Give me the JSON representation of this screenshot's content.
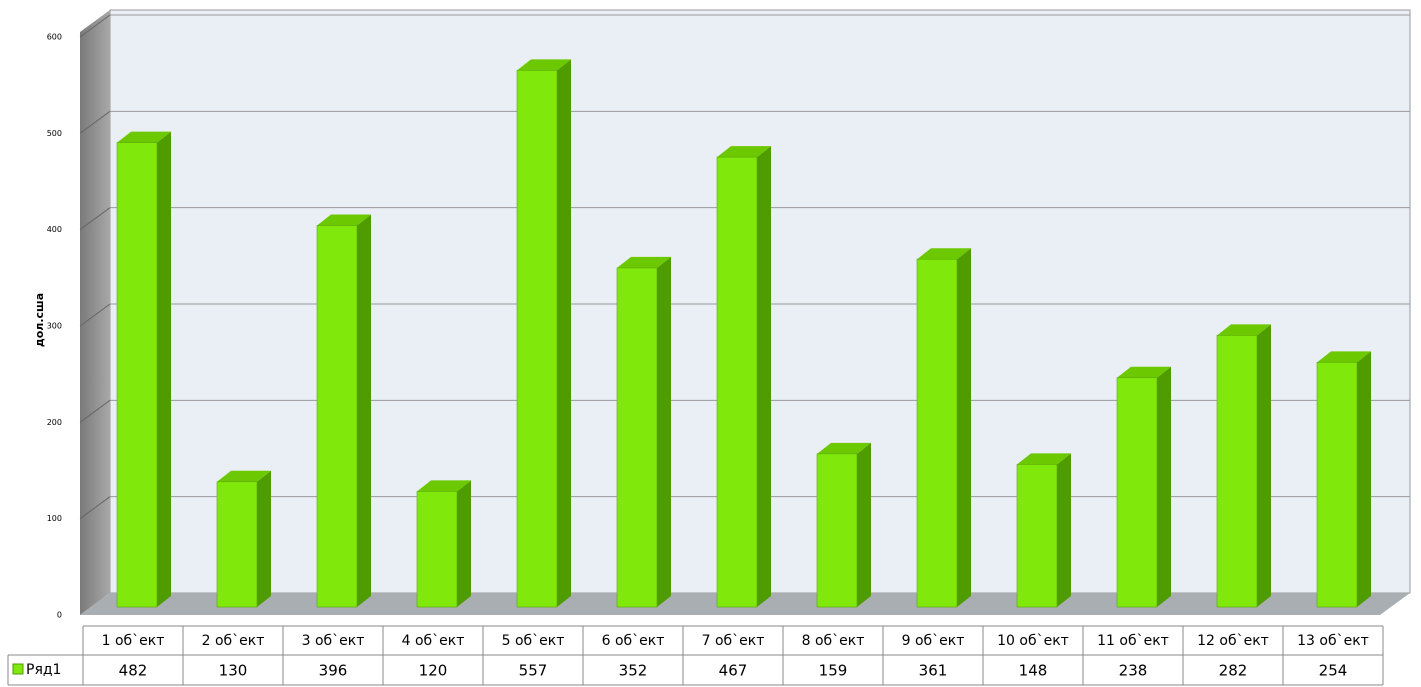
{
  "chart_data": {
    "type": "bar3d",
    "y_label": "дол.сша",
    "categories": [
      "1 об`ект",
      "2 об`ект",
      "3 об`ект",
      "4 об`ект",
      "5 об`ект",
      "6 об`ект",
      "7 об`ект",
      "8 об`ект",
      "9 об`ект",
      "10 об`ект",
      "11 об`ект",
      "12 об`ект",
      "13 об`ект"
    ],
    "series": [
      {
        "name": "Ряд1",
        "color": "#80e80a",
        "values": [
          482,
          130,
          396,
          120,
          557,
          352,
          467,
          159,
          361,
          148,
          238,
          282,
          254
        ]
      }
    ],
    "ylim": [
      0,
      600
    ],
    "yticks": [
      0,
      100,
      200,
      300,
      400,
      500,
      600
    ],
    "grid": true,
    "data_table": true
  }
}
